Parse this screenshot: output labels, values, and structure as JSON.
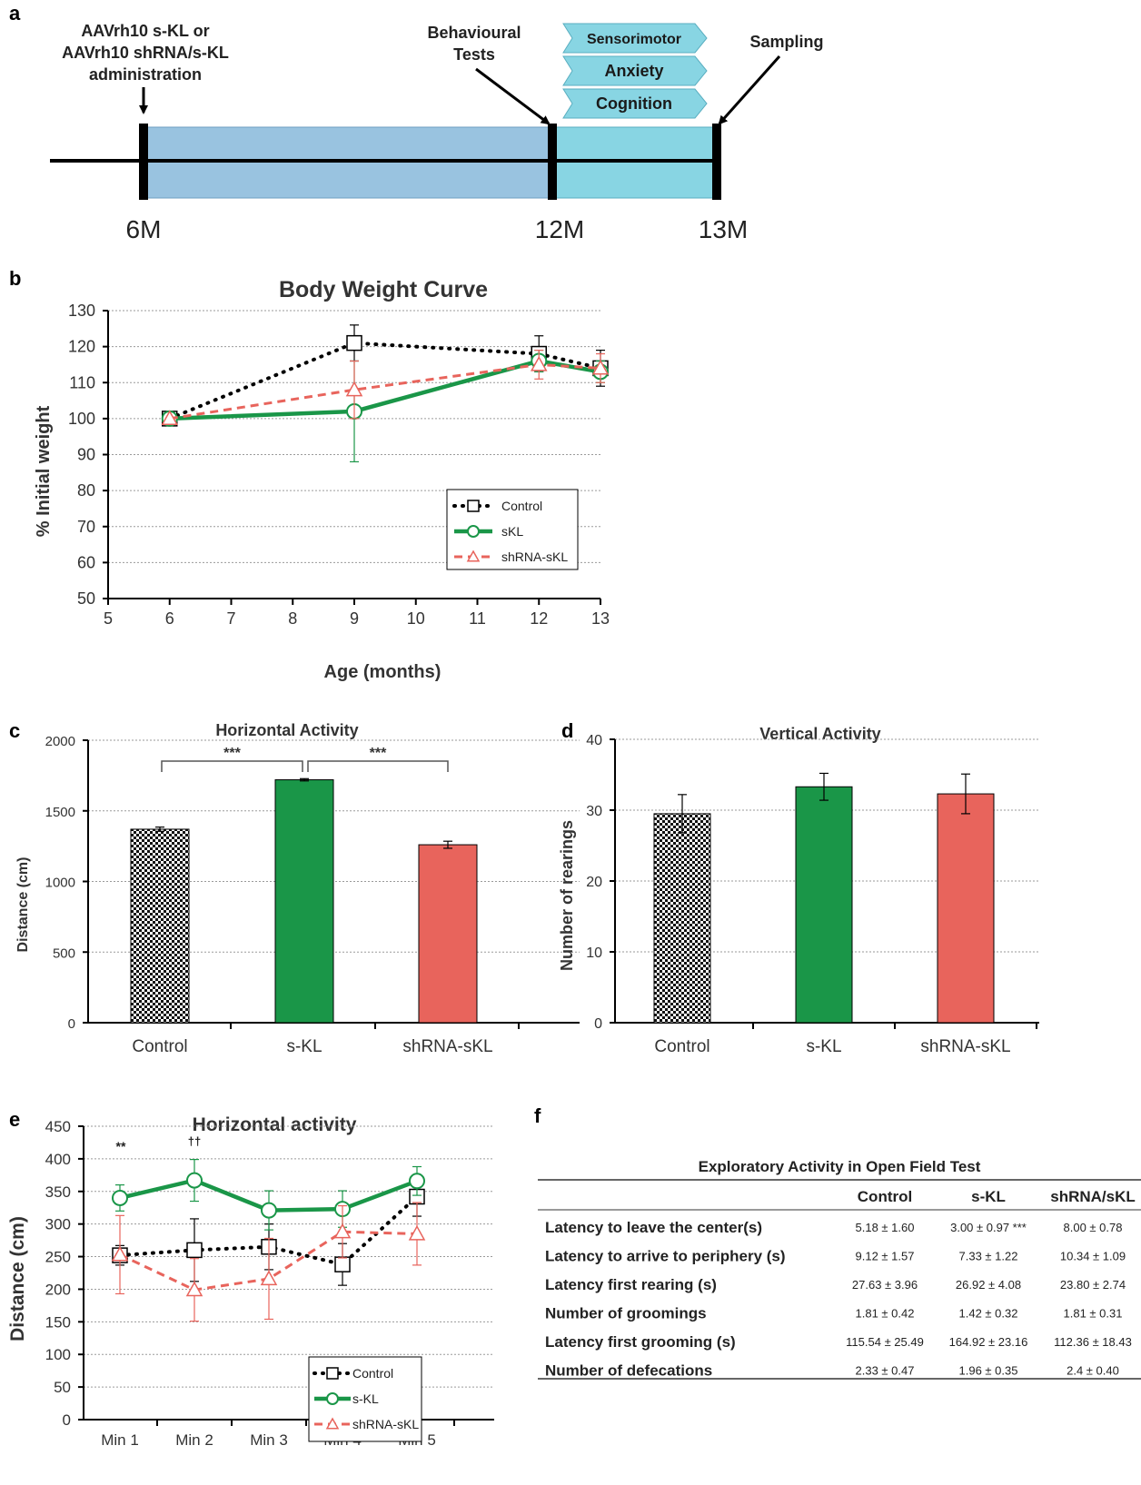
{
  "panel_labels": {
    "a": "a",
    "b": "b",
    "c": "c",
    "d": "d",
    "e": "e",
    "f": "f"
  },
  "timeline": {
    "admin_label_lines": [
      "AAVrh10 s-KL or",
      "AAVrh10 shRNA/s-KL",
      "administration"
    ],
    "behaviour_label_lines": [
      "Behavioural",
      "Tests"
    ],
    "tests": [
      "Sensorimotor",
      "Anxiety",
      "Cognition"
    ],
    "sampling_label": "Sampling",
    "time_labels": [
      "6M",
      "12M",
      "13M"
    ]
  },
  "colors": {
    "control": "#000000",
    "skl": "#1a9648",
    "shrna": "#e8645c",
    "timeline_fill": "#99c3e0",
    "tests_fill": "#88d5e3"
  },
  "chart_data": [
    {
      "id": "b",
      "type": "line",
      "title": "Body Weight Curve",
      "xlabel": "Age (months)",
      "ylabel": "% Initial weight",
      "xlim": [
        5,
        13
      ],
      "ylim": [
        50,
        130
      ],
      "xticks": [
        5,
        6,
        7,
        8,
        9,
        10,
        11,
        12,
        13
      ],
      "yticks": [
        50,
        60,
        70,
        80,
        90,
        100,
        110,
        120,
        130
      ],
      "x": [
        6,
        9,
        12,
        13
      ],
      "grid": true,
      "legend": "inside-bottom-right",
      "series": [
        {
          "name": "Control",
          "values": [
            100,
            121,
            118,
            114
          ],
          "errors": [
            0,
            5,
            5,
            5
          ]
        },
        {
          "name": "sKL",
          "values": [
            100,
            102,
            116,
            113
          ],
          "errors": [
            0,
            14,
            3,
            3
          ]
        },
        {
          "name": "shRNA-sKL",
          "values": [
            100,
            108,
            115,
            114
          ],
          "errors": [
            0,
            8,
            4,
            4
          ]
        }
      ]
    },
    {
      "id": "c",
      "type": "bar",
      "title": "Horizontal Activity",
      "ylabel": "Distance (cm)",
      "ylim": [
        0,
        2000
      ],
      "yticks": [
        0,
        500,
        1000,
        1500,
        2000
      ],
      "categories": [
        "Control",
        "s-KL",
        "shRNA-sKL"
      ],
      "values": [
        1370,
        1720,
        1260
      ],
      "errors": [
        15,
        8,
        25
      ],
      "annotations": [
        "***",
        "***"
      ],
      "grid": true
    },
    {
      "id": "d",
      "type": "bar",
      "title": "Vertical Activity",
      "ylabel": "Number of rearings",
      "ylim": [
        0,
        40
      ],
      "yticks": [
        0,
        10,
        20,
        30,
        40
      ],
      "categories": [
        "Control",
        "s-KL",
        "shRNA-sKL"
      ],
      "values": [
        29.5,
        33.3,
        32.3
      ],
      "errors": [
        2.7,
        1.9,
        2.8
      ],
      "grid": true
    },
    {
      "id": "e",
      "type": "line",
      "title": "Horizontal activity",
      "ylabel": "Distance (cm)",
      "ylim": [
        0,
        450
      ],
      "yticks": [
        0,
        50,
        100,
        150,
        200,
        250,
        300,
        350,
        400,
        450
      ],
      "categories": [
        "Min 1",
        "Min 2",
        "Min 3",
        "Min 4",
        "Min 5"
      ],
      "annotations": [
        "**",
        "††"
      ],
      "grid": true,
      "legend": "inside-bottom-right",
      "series": [
        {
          "name": "Control",
          "values": [
            252,
            260,
            265,
            238,
            342
          ],
          "errors": [
            15,
            48,
            35,
            32,
            30
          ]
        },
        {
          "name": "s-KL",
          "values": [
            340,
            367,
            321,
            323,
            366
          ],
          "errors": [
            20,
            32,
            30,
            28,
            22
          ]
        },
        {
          "name": "shRNA-sKL",
          "values": [
            253,
            199,
            216,
            288,
            285
          ],
          "errors": [
            60,
            48,
            62,
            40,
            48
          ]
        }
      ]
    }
  ],
  "table_f": {
    "title": "Exploratory Activity in Open Field Test",
    "columns": [
      "Control",
      "s-KL",
      "shRNA/sKL"
    ],
    "rows": [
      {
        "label": "Latency to leave the center(s)",
        "values": [
          "5.18 ± 1.60",
          "3.00 ± 0.97 ***",
          "8.00 ± 0.78"
        ]
      },
      {
        "label": "Latency to arrive to periphery (s)",
        "values": [
          "9.12 ± 1.57",
          "7.33 ± 1.22",
          "10.34 ± 1.09"
        ]
      },
      {
        "label": "Latency first rearing (s)",
        "values": [
          "27.63 ± 3.96",
          "26.92 ± 4.08",
          "23.80 ± 2.74"
        ]
      },
      {
        "label": "Number of groomings",
        "values": [
          "1.81 ± 0.42",
          "1.42 ± 0.32",
          "1.81 ± 0.31"
        ]
      },
      {
        "label": "Latency first grooming (s)",
        "values": [
          "115.54 ± 25.49",
          "164.92 ± 23.16",
          "112.36 ± 18.43"
        ]
      },
      {
        "label": "Number of defecations",
        "values": [
          "2.33 ±  0.47",
          "1.96 ±  0.35",
          "2.4 ± 0.40"
        ]
      }
    ]
  }
}
